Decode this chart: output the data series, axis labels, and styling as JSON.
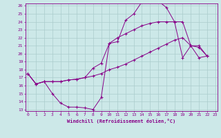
{
  "xlabel": "Windchill (Refroidissement éolien,°C)",
  "bg_color": "#cce8e8",
  "grid_color": "#aacccc",
  "line_color": "#880088",
  "xmin": 0,
  "xmax": 23,
  "ymin": 13,
  "ymax": 26,
  "c1_x": [
    0,
    1,
    2,
    3,
    4,
    5,
    6,
    7,
    8,
    9,
    10,
    11,
    12,
    13,
    14,
    15,
    16,
    17,
    18,
    19,
    20,
    21,
    22
  ],
  "c1_y": [
    17.5,
    16.2,
    16.5,
    15.0,
    13.8,
    13.3,
    13.3,
    13.2,
    13.0,
    14.5,
    21.3,
    21.5,
    24.2,
    25.0,
    26.5,
    26.7,
    26.6,
    25.8,
    24.0,
    24.0,
    21.0,
    20.8,
    19.7
  ],
  "c2_x": [
    0,
    1,
    2,
    3,
    4,
    5,
    6,
    7,
    8,
    9,
    10,
    11,
    12,
    13,
    14,
    15,
    16,
    17,
    18,
    19,
    20,
    21,
    22
  ],
  "c2_y": [
    17.5,
    16.2,
    16.5,
    16.5,
    16.5,
    16.7,
    16.8,
    17.0,
    18.2,
    18.8,
    21.3,
    22.0,
    22.5,
    23.0,
    23.5,
    23.8,
    24.0,
    24.0,
    24.0,
    19.5,
    21.0,
    21.0,
    19.7
  ],
  "c3_x": [
    0,
    1,
    2,
    3,
    4,
    5,
    6,
    7,
    8,
    9,
    10,
    11,
    12,
    13,
    14,
    15,
    16,
    17,
    18,
    19,
    20,
    21,
    22
  ],
  "c3_y": [
    17.5,
    16.2,
    16.5,
    16.5,
    16.5,
    16.7,
    16.8,
    17.0,
    17.2,
    17.5,
    18.0,
    18.3,
    18.7,
    19.2,
    19.7,
    20.2,
    20.7,
    21.2,
    21.7,
    22.0,
    21.0,
    19.5,
    19.7
  ]
}
